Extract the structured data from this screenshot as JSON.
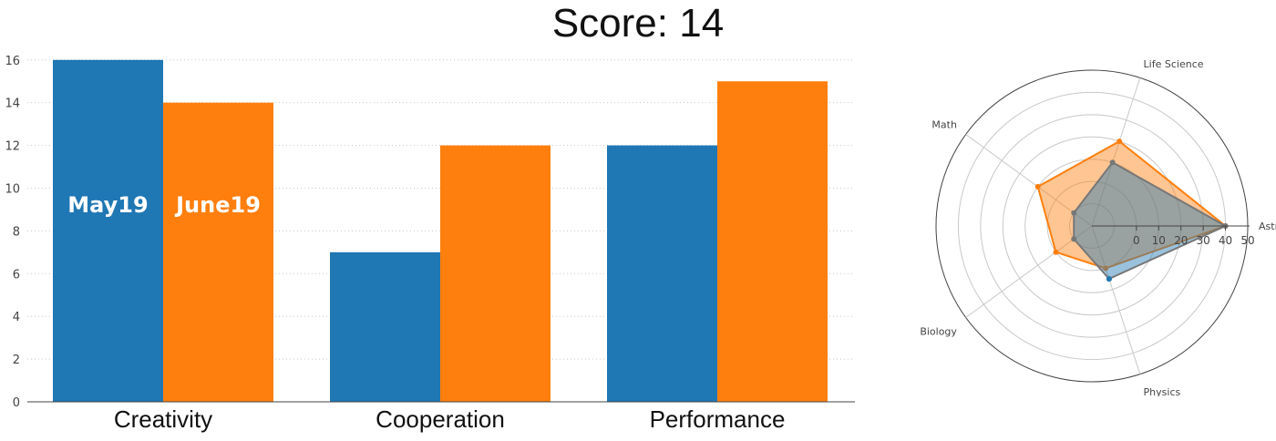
{
  "title": "Score: 14",
  "colors": {
    "may": "#1f77b4",
    "june": "#ff7f0e",
    "grid": "#c8c8c8",
    "axis": "#444444"
  },
  "chart_data": [
    {
      "type": "bar",
      "title": "Score: 14",
      "categories": [
        "Creativity",
        "Cooperation",
        "Performance"
      ],
      "series": [
        {
          "name": "May19",
          "values": [
            16,
            7,
            12
          ]
        },
        {
          "name": "June19",
          "values": [
            14,
            12,
            15
          ]
        }
      ],
      "ylim": [
        0,
        16.8
      ],
      "yticks": [
        0,
        2,
        4,
        6,
        8,
        10,
        12,
        14,
        16
      ],
      "grid": true,
      "in_bar_labels": [
        "May19",
        "June19"
      ]
    },
    {
      "type": "radar",
      "axes": [
        "Astronomy",
        "Life Science",
        "Math",
        "Biology",
        "Physics"
      ],
      "rlim": [
        -20,
        50
      ],
      "rticks": [
        0,
        10,
        20,
        30,
        40,
        50
      ],
      "series": [
        {
          "values": [
            40,
            10,
            -10,
            -10,
            5
          ]
        },
        {
          "values": [
            40,
            20,
            10,
            0,
            0
          ]
        }
      ]
    }
  ]
}
